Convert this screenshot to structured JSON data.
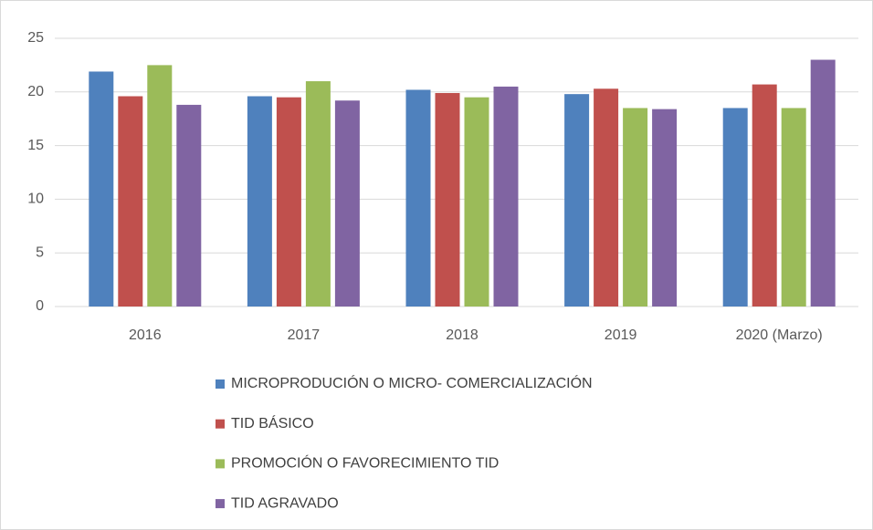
{
  "chart_data": {
    "type": "bar",
    "categories": [
      "2016",
      "2017",
      "2018",
      "2019",
      "2020 (Marzo)"
    ],
    "series": [
      {
        "name": "MICROPRODUCIÓN O MICRO- COMERCIALIZACIÓN",
        "color": "#4f81bd",
        "values": [
          21.9,
          19.6,
          20.2,
          19.8,
          18.5
        ]
      },
      {
        "name": "TID BÁSICO",
        "color": "#c0504d",
        "values": [
          19.6,
          19.5,
          19.9,
          20.3,
          20.7
        ]
      },
      {
        "name": "PROMOCIÓN O FAVORECIMIENTO TID",
        "color": "#9bbb59",
        "values": [
          22.5,
          21.0,
          19.5,
          18.5,
          18.5
        ]
      },
      {
        "name": "TID AGRAVADO",
        "color": "#8064a2",
        "values": [
          18.8,
          19.2,
          20.5,
          18.4,
          23.0
        ]
      }
    ],
    "ylim": [
      0,
      25
    ],
    "yticks": [
      0,
      5,
      10,
      15,
      20,
      25
    ],
    "grid": true,
    "legend": "bottom"
  }
}
